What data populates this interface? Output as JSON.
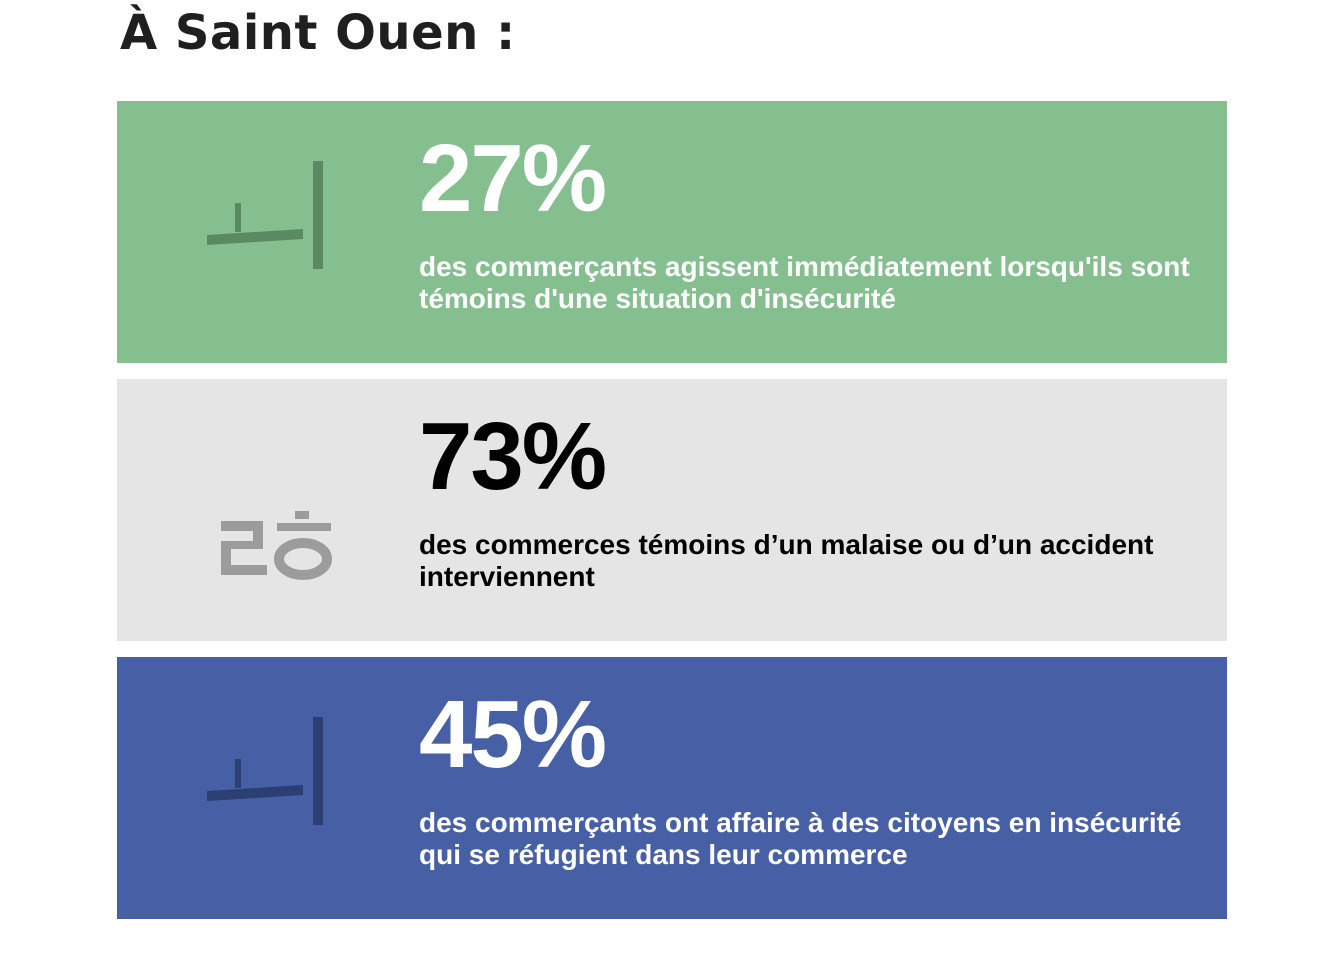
{
  "page": {
    "title": "À Saint Ouen :"
  },
  "cards": [
    {
      "value": "27%",
      "text": "des commerçants agissent immédiatement lorsqu'ils sont témoins d'une situation d'insécurité",
      "icon": "action-glyph-icon",
      "background": "#86bf8f",
      "text_color": "#ffffff",
      "icon_color": "#5a8a62"
    },
    {
      "value": "73%",
      "text": "des commerces témoins d’un malaise ou d’un accident interviennent",
      "icon": "intervention-glyph-icon",
      "background": "#e5e5e5",
      "text_color": "#000000",
      "icon_color": "#9c9c9c"
    },
    {
      "value": "45%",
      "text": "des commerçants ont affaire à des citoyens en insécurité qui se réfugient dans leur commerce",
      "icon": "refuge-glyph-icon",
      "background": "#465fa5",
      "text_color": "#ffffff",
      "icon_color": "#2c3f73"
    }
  ]
}
